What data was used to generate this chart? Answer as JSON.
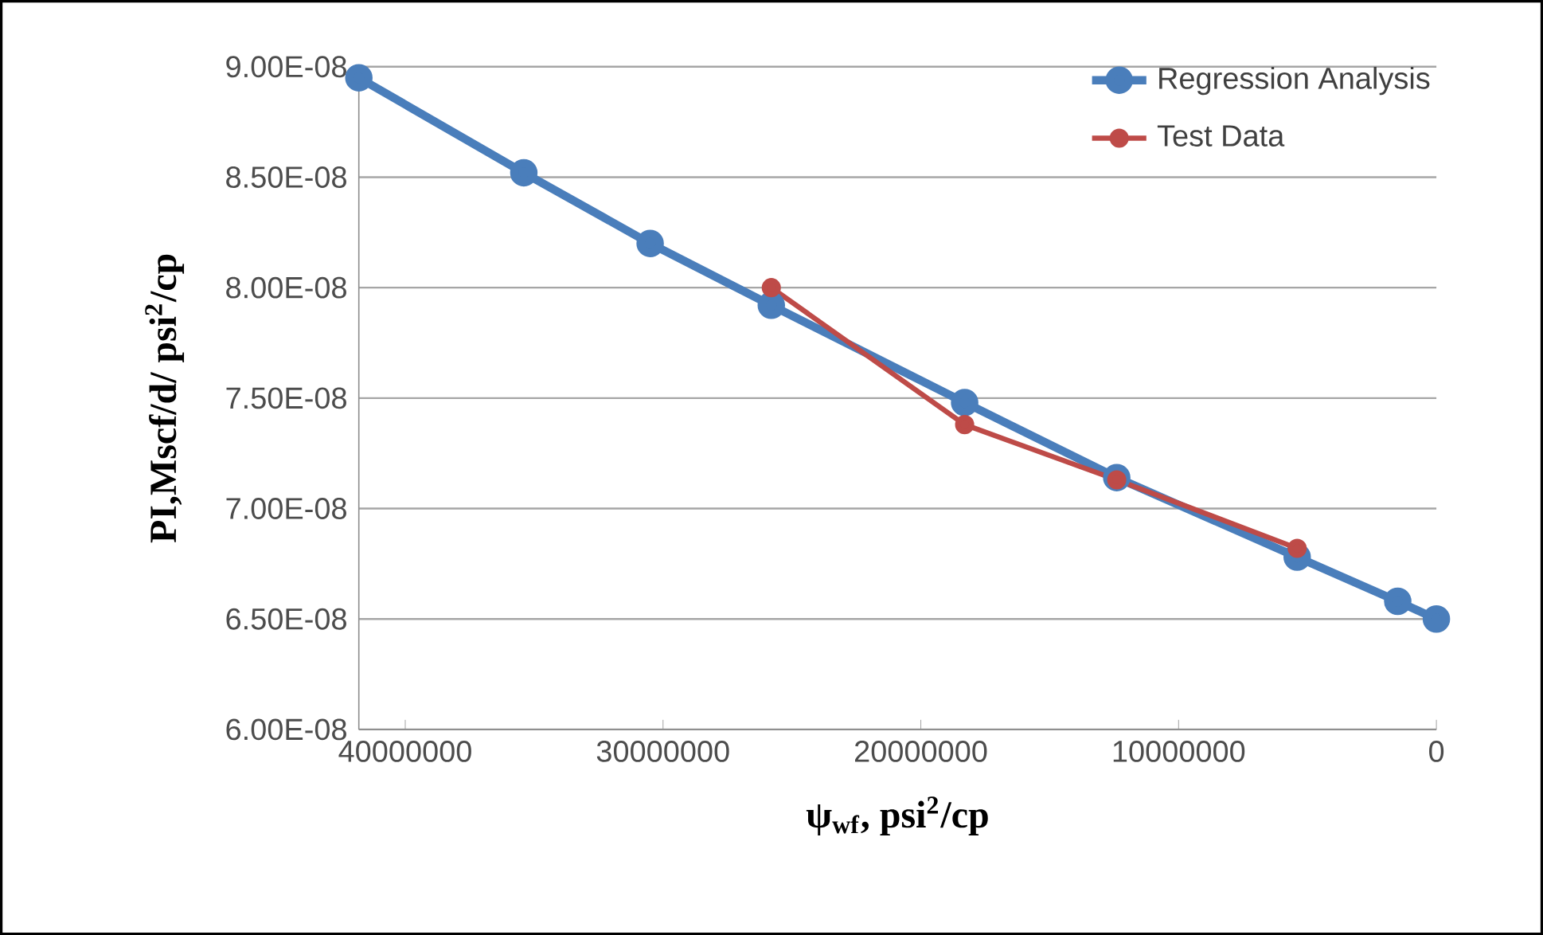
{
  "chart_data": {
    "type": "line",
    "xlabel": "ψ$_{wf}$, psi$^{2}$/cp",
    "ylabel": "PI,Mscf/d/ psi$^{2}$/cp",
    "xlim": [
      41800000,
      0
    ],
    "xticks": [
      40000000,
      30000000,
      20000000,
      10000000,
      0
    ],
    "ylim": [
      6e-08,
      9e-08
    ],
    "yticks": [
      {
        "value": 6e-08,
        "label": "6.00E-08"
      },
      {
        "value": 6.5e-08,
        "label": "6.50E-08"
      },
      {
        "value": 7e-08,
        "label": "7.00E-08"
      },
      {
        "value": 7.5e-08,
        "label": "7.50E-08"
      },
      {
        "value": 8e-08,
        "label": "8.00E-08"
      },
      {
        "value": 8.5e-08,
        "label": "8.50E-08"
      },
      {
        "value": 9e-08,
        "label": "9.00E-08"
      }
    ],
    "grid": "y",
    "legend": "top right",
    "marker": "circle",
    "line_style": "solid",
    "series": [
      {
        "name": "Regression Analysis",
        "color": "#4a7ebb",
        "x": [
          41800000,
          35400000,
          30500000,
          25800000,
          18300000,
          12400000,
          5400000,
          1500000,
          0
        ],
        "values": [
          8.95e-08,
          8.52e-08,
          8.2e-08,
          7.92e-08,
          7.48e-08,
          7.14e-08,
          6.78e-08,
          6.58e-08,
          6.5e-08
        ]
      },
      {
        "name": "Test Data",
        "color": "#be4b48",
        "x": [
          25800000,
          18300000,
          12400000,
          5400000
        ],
        "values": [
          8e-08,
          7.38e-08,
          7.13e-08,
          6.82e-08
        ]
      }
    ]
  }
}
